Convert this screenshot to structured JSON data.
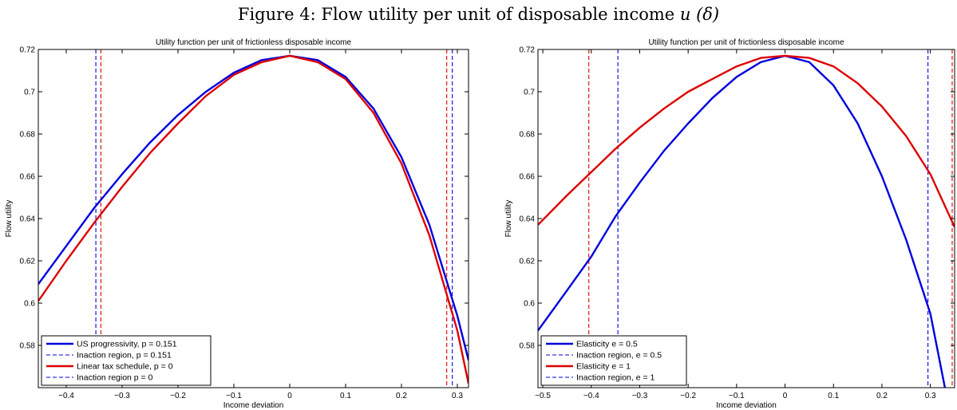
{
  "figure": {
    "title_text": "Figure 4: Flow utility per unit of disposable income ",
    "title_math": "u (δ)"
  },
  "chart_data": [
    {
      "type": "line",
      "title": "Utility function per unit of frictionless disposable income",
      "xlabel": "Income deviation",
      "ylabel": "Flow utility",
      "xlim": [
        -0.45,
        0.32
      ],
      "ylim": [
        0.56,
        0.72
      ],
      "xticks": [
        -0.4,
        -0.3,
        -0.2,
        -0.1,
        0,
        0.1,
        0.2,
        0.3
      ],
      "xtick_labels": [
        "−0.4",
        "−0.3",
        "−0.2",
        "−0.1",
        "0",
        "0.1",
        "0.2",
        "0.3"
      ],
      "yticks": [
        0.58,
        0.6,
        0.62,
        0.64,
        0.66,
        0.68,
        0.7,
        0.72
      ],
      "ytick_labels": [
        "0.58",
        "0.6",
        "0.62",
        "0.64",
        "0.66",
        "0.68",
        "0.7",
        "0.72"
      ],
      "legend_position": "bottom-left",
      "series": [
        {
          "name": "US progressivity, p = 0.151",
          "color": "#0000dd",
          "style": "solid",
          "x": [
            -0.45,
            -0.4,
            -0.35,
            -0.3,
            -0.25,
            -0.2,
            -0.15,
            -0.1,
            -0.05,
            0,
            0.05,
            0.1,
            0.15,
            0.2,
            0.25,
            0.3,
            0.32
          ],
          "y": [
            0.609,
            0.627,
            0.645,
            0.661,
            0.676,
            0.689,
            0.7,
            0.709,
            0.715,
            0.717,
            0.715,
            0.707,
            0.692,
            0.669,
            0.637,
            0.594,
            0.573
          ]
        },
        {
          "name": "Inaction region, p = 0.151",
          "color": "#0000dd",
          "style": "dashed",
          "vlines": [
            -0.347,
            0.291
          ]
        },
        {
          "name": "Linear tax schedule, p = 0",
          "color": "#dd0000",
          "style": "solid",
          "x": [
            -0.45,
            -0.4,
            -0.35,
            -0.3,
            -0.25,
            -0.2,
            -0.15,
            -0.1,
            -0.05,
            0,
            0.05,
            0.1,
            0.15,
            0.2,
            0.25,
            0.3,
            0.32
          ],
          "y": [
            0.601,
            0.62,
            0.638,
            0.655,
            0.671,
            0.685,
            0.698,
            0.708,
            0.714,
            0.717,
            0.714,
            0.706,
            0.69,
            0.666,
            0.632,
            0.587,
            0.562
          ]
        },
        {
          "name": "Inaction region p = 0",
          "color": "#0000dd",
          "style": "dashed",
          "vlines": [
            -0.338,
            0.281
          ],
          "line_color": "#dd0000"
        }
      ]
    },
    {
      "type": "line",
      "title": "Utility function per unit of frictionless disposable income",
      "xlabel": "Income deviation",
      "ylabel": "Flow utility",
      "xlim": [
        -0.51,
        0.35
      ],
      "ylim": [
        0.56,
        0.72
      ],
      "xticks": [
        -0.5,
        -0.4,
        -0.3,
        -0.2,
        -0.1,
        0,
        0.1,
        0.2,
        0.3
      ],
      "xtick_labels": [
        "−0.5",
        "−0.4",
        "−0.3",
        "−0.2",
        "−0.1",
        "0",
        "0.1",
        "0.2",
        "0.3"
      ],
      "yticks": [
        0.58,
        0.6,
        0.62,
        0.64,
        0.66,
        0.68,
        0.7,
        0.72
      ],
      "ytick_labels": [
        "0.58",
        "0.6",
        "0.62",
        "0.64",
        "0.66",
        "0.68",
        "0.7",
        "0.72"
      ],
      "legend_position": "bottom-left",
      "series": [
        {
          "name": "Elasticity e = 0.5",
          "color": "#0000dd",
          "style": "solid",
          "x": [
            -0.51,
            -0.45,
            -0.4,
            -0.35,
            -0.3,
            -0.25,
            -0.2,
            -0.15,
            -0.1,
            -0.05,
            0,
            0.05,
            0.1,
            0.15,
            0.2,
            0.25,
            0.3,
            0.33
          ],
          "y": [
            0.587,
            0.606,
            0.622,
            0.641,
            0.657,
            0.672,
            0.685,
            0.697,
            0.707,
            0.714,
            0.717,
            0.714,
            0.703,
            0.685,
            0.66,
            0.63,
            0.595,
            0.56
          ]
        },
        {
          "name": "Inaction region, e = 0.5",
          "color": "#0000dd",
          "style": "dashed",
          "vlines": [
            -0.345,
            0.295
          ]
        },
        {
          "name": "Elasticity e = 1",
          "color": "#dd0000",
          "style": "solid",
          "x": [
            -0.51,
            -0.45,
            -0.4,
            -0.35,
            -0.3,
            -0.25,
            -0.2,
            -0.15,
            -0.1,
            -0.05,
            0,
            0.05,
            0.1,
            0.15,
            0.2,
            0.25,
            0.3,
            0.35
          ],
          "y": [
            0.637,
            0.651,
            0.662,
            0.673,
            0.683,
            0.692,
            0.7,
            0.706,
            0.712,
            0.716,
            0.717,
            0.716,
            0.712,
            0.704,
            0.693,
            0.679,
            0.661,
            0.636
          ]
        },
        {
          "name": "Inaction region, e = 1",
          "color": "#0000dd",
          "style": "dashed",
          "vlines": [
            -0.405,
            0.345
          ],
          "line_color": "#dd0000"
        }
      ]
    }
  ]
}
